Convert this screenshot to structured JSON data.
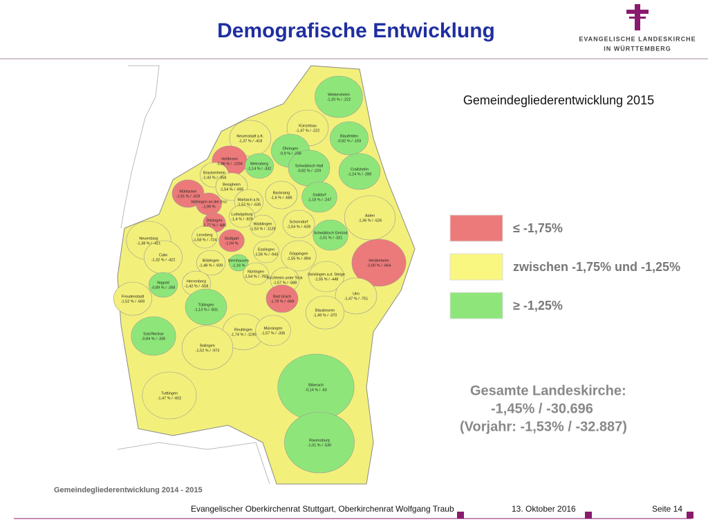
{
  "header": {
    "title": "Demografische Entwicklung",
    "logo_line1": "Evangelische Landeskirche",
    "logo_line2": "in Württemberg"
  },
  "subtitle": "Gemeindegliederentwicklung 2015",
  "map_caption": "Gemeindegliederentwicklung 2014 - 2015",
  "districts": [
    {
      "name": "Weikersheim",
      "value": "-1,20 % / -222",
      "color": "#8ee67a"
    },
    {
      "name": "Künzelsau",
      "value": "-1,47 % / -222",
      "color": "#f2f07a"
    },
    {
      "name": "Blaufelden",
      "value": "-0,82 % / -159",
      "color": "#8ee67a"
    },
    {
      "name": "Neuenstadt a.K.",
      "value": "-1,37 % / -418",
      "color": "#f2f07a"
    },
    {
      "name": "Öhringen",
      "value": "-0,9 % / -258",
      "color": "#8ee67a"
    },
    {
      "name": "Heilbronn",
      "value": "-1,86 % / -1204",
      "color": "#ec7a7a"
    },
    {
      "name": "Weinsberg",
      "value": "-1,14 % / -332",
      "color": "#8ee67a"
    },
    {
      "name": "Schwäbisch Hall",
      "value": "-0,82 % / -229",
      "color": "#8ee67a"
    },
    {
      "name": "Crailsheim",
      "value": "-1,24 % / -289",
      "color": "#8ee67a"
    },
    {
      "name": "Brackenheim",
      "value": "-1,43 % / -358",
      "color": "#f2f07a"
    },
    {
      "name": "Besigheim",
      "value": "-1,54 % / -695",
      "color": "#f2f07a"
    },
    {
      "name": "Mühlacker",
      "value": "-1,91 % / -629",
      "color": "#ec7a7a"
    },
    {
      "name": "Vaihingen an der Enz",
      "value": "-1,99 %",
      "color": "#ec7a7a"
    },
    {
      "name": "Marbach a.N.",
      "value": "-1,52 % / -635",
      "color": "#f2f07a"
    },
    {
      "name": "Backnang",
      "value": "-1,6 % / -685",
      "color": "#f2f07a"
    },
    {
      "name": "Gaildorf",
      "value": "-1,18 % / -247",
      "color": "#8ee67a"
    },
    {
      "name": "Aalen",
      "value": "-1,36 % / -526",
      "color": "#f2f07a"
    },
    {
      "name": "Ludwigsburg",
      "value": "-1,4 % / -929",
      "color": "#f2f07a"
    },
    {
      "name": "Ditzingen",
      "value": "-1,77 % / -680",
      "color": "#ec7a7a"
    },
    {
      "name": "Waiblingen",
      "value": "-1,53 % / -1129",
      "color": "#f2f07a"
    },
    {
      "name": "Schorndorf",
      "value": "-1,54 % / -639",
      "color": "#f2f07a"
    },
    {
      "name": "Schwäbisch Gmünd",
      "value": "-1,01 % / -321",
      "color": "#8ee67a"
    },
    {
      "name": "Neuenbürg",
      "value": "-1,38 % / -421",
      "color": "#f2f07a"
    },
    {
      "name": "Leonberg",
      "value": "-1,58 % / -724",
      "color": "#f2f07a"
    },
    {
      "name": "Stuttgart",
      "value": "-1,94 %",
      "color": "#ec7a7a"
    },
    {
      "name": "Heidenheim",
      "value": "-2,00 % / -664",
      "color": "#ec7a7a"
    },
    {
      "name": "Calw",
      "value": "-1,32 % / -422",
      "color": "#f2f07a"
    },
    {
      "name": "Esslingen",
      "value": "-1,56 % / -943",
      "color": "#f2f07a"
    },
    {
      "name": "Göppingen",
      "value": "-1,55 % / -894",
      "color": "#f2f07a"
    },
    {
      "name": "Böblingen",
      "value": "-1,48 % / -939",
      "color": "#f2f07a"
    },
    {
      "name": "Bernhausen",
      "value": "-1,16 %",
      "color": "#8ee67a"
    },
    {
      "name": "Nagold",
      "value": "-0,89 % / -268",
      "color": "#8ee67a"
    },
    {
      "name": "Herrenberg",
      "value": "-1,42 % / -558",
      "color": "#f2f07a"
    },
    {
      "name": "Nürtingen",
      "value": "-1,54 % / -782",
      "color": "#f2f07a"
    },
    {
      "name": "Kirchheim unter Teck",
      "value": "-1,57 % / -588",
      "color": "#f2f07a"
    },
    {
      "name": "Geislingen a.d. Steige",
      "value": "-1,55 % / -448",
      "color": "#f2f07a"
    },
    {
      "name": "Ulm",
      "value": "-1,47 % / -751",
      "color": "#f2f07a"
    },
    {
      "name": "Freudenstadt",
      "value": "-1,52 % / -569",
      "color": "#f2f07a"
    },
    {
      "name": "Bad Urach",
      "value": "-1,78 % / -668",
      "color": "#ec7a7a"
    },
    {
      "name": "Tübingen",
      "value": "-1,13 % / -831",
      "color": "#8ee67a"
    },
    {
      "name": "Blaubeuren",
      "value": "-1,49 % / -370",
      "color": "#f2f07a"
    },
    {
      "name": "Reutlingen",
      "value": "-1,74 % / -1190",
      "color": "#f2f07a"
    },
    {
      "name": "Münsingen",
      "value": "-1,57 % / -336",
      "color": "#f2f07a"
    },
    {
      "name": "Sulz/Neckar",
      "value": "-0,84 % / -335",
      "color": "#8ee67a"
    },
    {
      "name": "Balingen",
      "value": "-1,52 % / -973",
      "color": "#f2f07a"
    },
    {
      "name": "Biberach",
      "value": "-0,14 % / -63",
      "color": "#8ee67a"
    },
    {
      "name": "Tuttlingen",
      "value": "-1,47 % / -602",
      "color": "#f2f07a"
    },
    {
      "name": "Ravensburg",
      "value": "-1,01 % / -530",
      "color": "#8ee67a"
    }
  ],
  "legend": [
    {
      "label": "≤ -1,75%",
      "color": "#ec7a7a"
    },
    {
      "label": "zwischen -1,75% und -1,25%",
      "color": "#f9f77f"
    },
    {
      "label": "≥ -1,25%",
      "color": "#8ee67a"
    }
  ],
  "summary": {
    "line1": "Gesamte Landeskirche:",
    "line2": "-1,45% / -30.696",
    "line3": "(Vorjahr:  -1,53% / -32.887)"
  },
  "footer": {
    "author": "Evangelischer Oberkirchenrat Stuttgart, Oberkirchenrat Wolfgang Traub",
    "date": "13. Oktober 2016",
    "page": "Seite 14"
  }
}
